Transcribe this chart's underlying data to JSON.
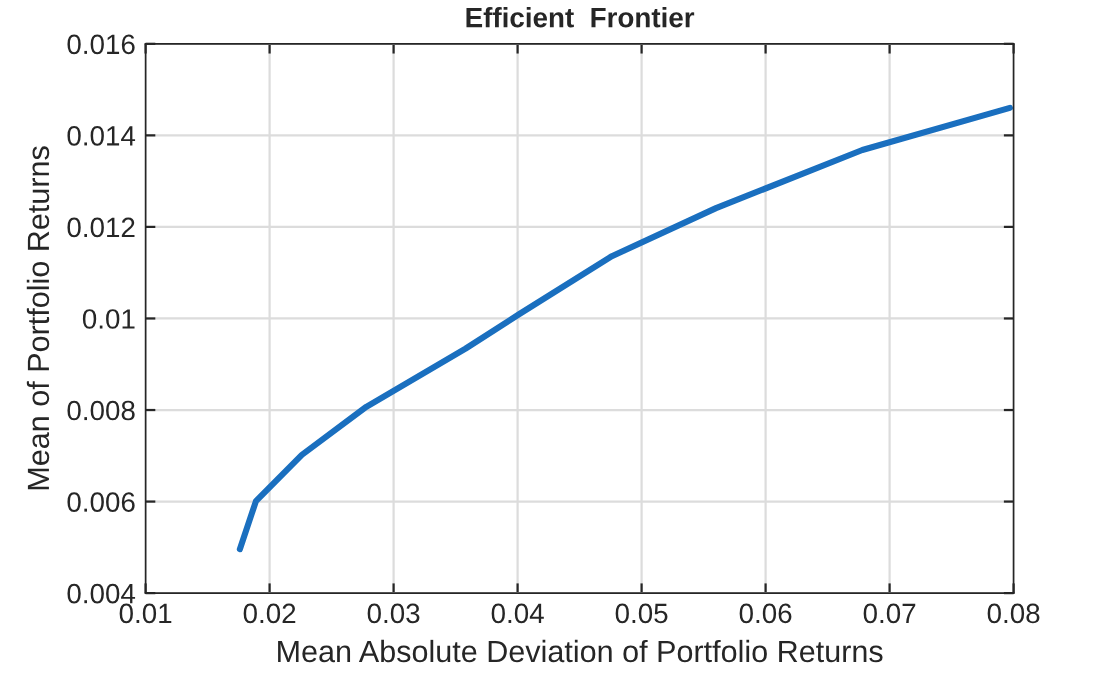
{
  "chart_data": {
    "type": "line",
    "title": "Efficient  Frontier",
    "xlabel": "Mean Absolute Deviation of Portfolio Returns",
    "ylabel": "Mean of Portfolio Returns",
    "x": [
      0.0176,
      0.0189,
      0.0226,
      0.0278,
      0.0358,
      0.0401,
      0.0476,
      0.056,
      0.0678,
      0.0797
    ],
    "series": [
      {
        "color": "#1a6fbf",
        "values": [
          0.00496,
          0.00601,
          0.00702,
          0.00807,
          0.00934,
          0.01009,
          0.01136,
          0.01241,
          0.01368,
          0.0146
        ]
      }
    ],
    "xlim": [
      0.01,
      0.08
    ],
    "xticks": [
      0.01,
      0.02,
      0.03,
      0.04,
      0.05,
      0.06,
      0.07,
      0.08
    ],
    "ylim": [
      0.004,
      0.016
    ],
    "yticks": [
      0.004,
      0.006,
      0.008,
      0.01,
      0.012,
      0.014,
      0.016
    ],
    "grid": true,
    "legend": false,
    "line_style": "solid",
    "marker": "none"
  }
}
